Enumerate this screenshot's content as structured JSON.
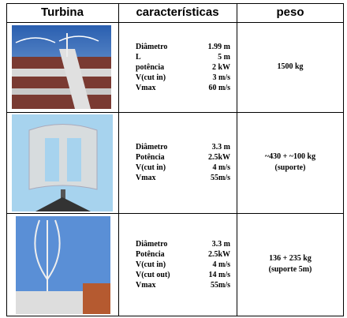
{
  "table": {
    "header": [
      "Turbina",
      "características",
      "peso"
    ],
    "rows": [
      {
        "characteristics": [
          [
            "Diâmetro",
            "1.99 m"
          ],
          [
            "L",
            "5 m"
          ],
          [
            "potência",
            "2 kW"
          ],
          [
            "V(cut in)",
            "3 m/s"
          ],
          [
            "Vmax",
            "60 m/s"
          ]
        ],
        "peso": [
          "1500 kg"
        ]
      },
      {
        "characteristics": [
          [
            "Diâmetro",
            "3.3 m"
          ],
          [
            "Potência",
            "2.5kW"
          ],
          [
            "V(cut in)",
            "4 m/s"
          ],
          [
            "Vmax",
            "55m/s"
          ]
        ],
        "peso": [
          "~430 + ~100 kg",
          "(suporte)"
        ]
      },
      {
        "characteristics": [
          [
            "Diâmetro",
            "3.3 m"
          ],
          [
            "Potência",
            "2.5kW"
          ],
          [
            "V(cut in)",
            "4 m/s"
          ],
          [
            "V(cut out)",
            "14 m/s"
          ],
          [
            "Vmax",
            "55m/s"
          ]
        ],
        "peso": [
          "136 + 235 kg",
          "(suporte 5m)"
        ]
      }
    ]
  }
}
